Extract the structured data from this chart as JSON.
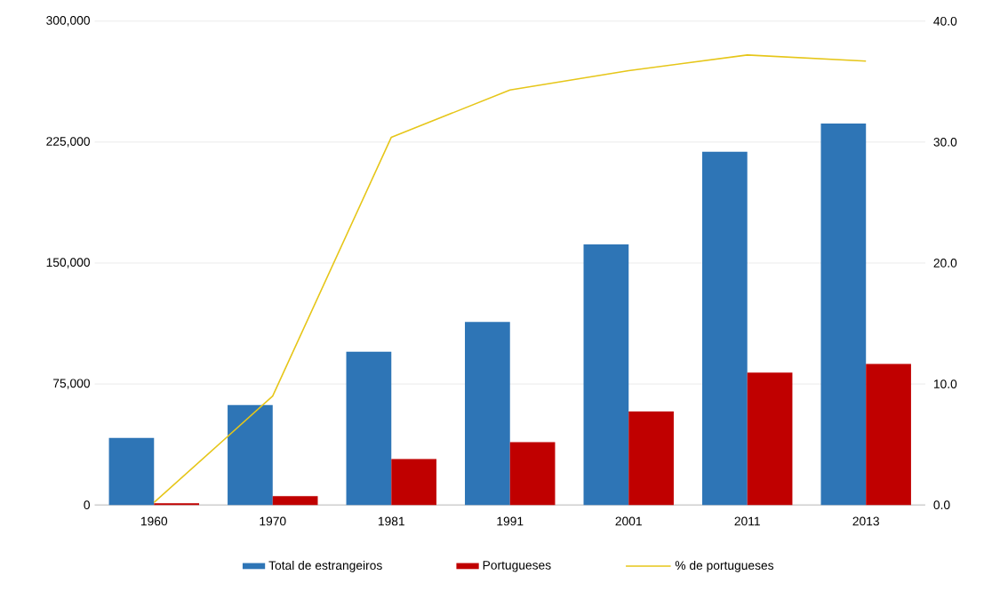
{
  "chart_data": {
    "type": "bar",
    "categories": [
      "1960",
      "1970",
      "1981",
      "1991",
      "2001",
      "2011",
      "2013"
    ],
    "series": [
      {
        "name": "Total de estrangeiros",
        "color": "#2e75b6",
        "values": [
          41500,
          62000,
          95000,
          113500,
          161500,
          219000,
          236500
        ]
      },
      {
        "name": "Portugueses",
        "color": "#c00000",
        "values": [
          1000,
          5500,
          28500,
          39000,
          58000,
          82000,
          87500
        ]
      },
      {
        "name": "% de portugueses",
        "color": "#e6c619",
        "type": "line",
        "axis": "y2",
        "values": [
          0.2,
          9.0,
          30.4,
          34.3,
          35.9,
          37.2,
          36.7
        ]
      }
    ],
    "ylim": [
      0,
      300000
    ],
    "yticks": [
      {
        "value": 0,
        "label": "0"
      },
      {
        "value": 75000,
        "label": "75,000"
      },
      {
        "value": 150000,
        "label": "150,000"
      },
      {
        "value": 225000,
        "label": "225,000"
      },
      {
        "value": 300000,
        "label": "300,000"
      }
    ],
    "y2lim": [
      0,
      40
    ],
    "y2ticks": [
      {
        "value": 0,
        "label": "0.0"
      },
      {
        "value": 10,
        "label": "10.0"
      },
      {
        "value": 20,
        "label": "20.0"
      },
      {
        "value": 30,
        "label": "30.0"
      },
      {
        "value": 40,
        "label": "40.0"
      }
    ],
    "grid": "y",
    "legend": "bottom"
  }
}
